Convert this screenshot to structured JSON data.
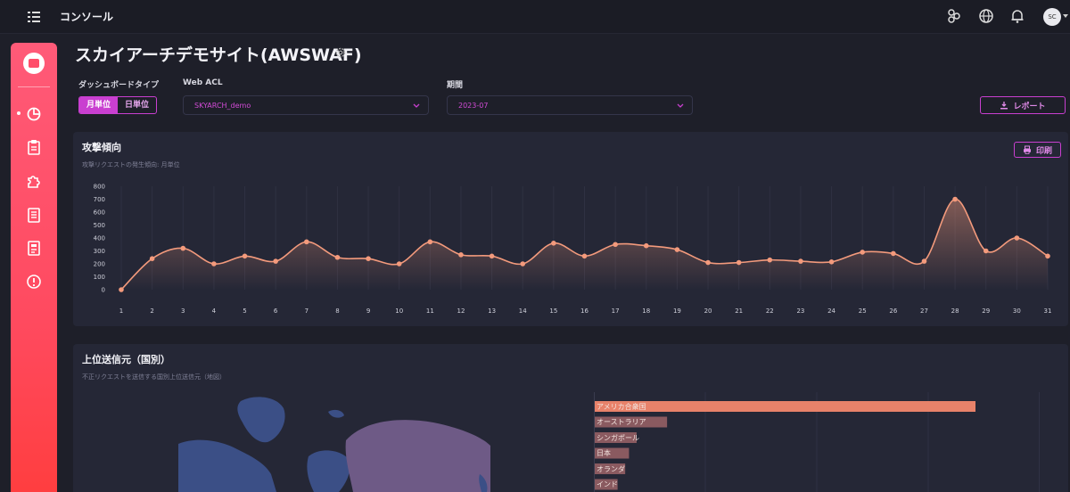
{
  "header": {
    "title": "コンソール",
    "user_initials": "SC"
  },
  "page": {
    "title": "スカイアーチデモサイト(AWSWAF)"
  },
  "filters": {
    "dashboard_type_label": "ダッシュボードタイプ",
    "monthly_label": "月単位",
    "daily_label": "日単位",
    "web_acl_label": "Web ACL",
    "web_acl_value": "SKYARCH_demo",
    "period_label": "期間",
    "period_value": "2023-07",
    "report_button": "レポート"
  },
  "attack_trend": {
    "title": "攻撃傾向",
    "subtitle": "攻撃リクエストの発生傾向: 月単位",
    "print_button": "印刷"
  },
  "top_sources": {
    "title": "上位送信元（国別）",
    "subtitle": "不正リクエストを送信する国別上位送信元（地図）"
  },
  "colors": {
    "accent": "#c93fd0",
    "sidebar": "#ff4d6a",
    "line": "#f39a7c"
  },
  "chart_data": [
    {
      "type": "area",
      "title": "攻撃傾向",
      "x": [
        "1",
        "2",
        "3",
        "4",
        "5",
        "6",
        "7",
        "8",
        "9",
        "10",
        "11",
        "12",
        "13",
        "14",
        "15",
        "16",
        "17",
        "18",
        "19",
        "20",
        "21",
        "22",
        "23",
        "24",
        "25",
        "26",
        "27",
        "28",
        "29",
        "30",
        "31"
      ],
      "series": [
        {
          "values": [
            0,
            240,
            320,
            200,
            260,
            220,
            370,
            250,
            240,
            200,
            370,
            270,
            260,
            200,
            360,
            260,
            350,
            340,
            310,
            210,
            210,
            230,
            220,
            215,
            290,
            280,
            220,
            700,
            300,
            400,
            260
          ]
        }
      ],
      "ylim": [
        0,
        800
      ],
      "yticks": [
        "0",
        "100",
        "200",
        "300",
        "400",
        "500",
        "600",
        "700",
        "800"
      ],
      "grid": true
    },
    {
      "type": "bar",
      "title": "上位送信元（国別）",
      "categories": [
        "アメリカ合衆国",
        "オーストラリア",
        "シンガポール",
        "日本",
        "オランダ",
        "インド"
      ],
      "values": [
        100,
        19,
        11,
        9,
        8,
        6
      ]
    }
  ]
}
